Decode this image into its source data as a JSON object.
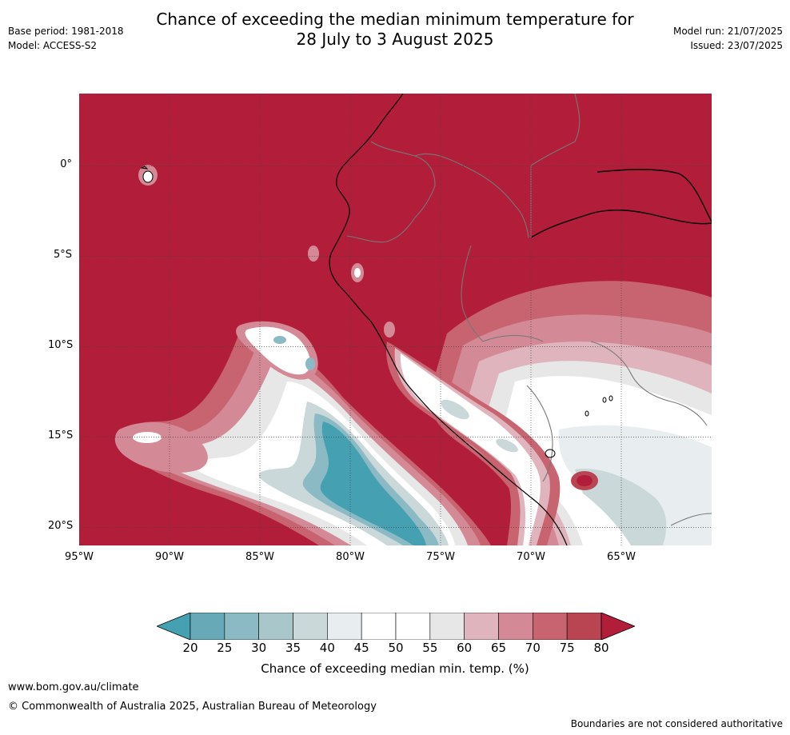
{
  "title_line1": "Chance of exceeding the median minimum temperature for",
  "title_line2": "28 July to 3 August 2025",
  "meta_left": [
    "Base period: 1981-2018",
    "Model: ACCESS-S2"
  ],
  "meta_right": [
    "Model run: 21/07/2025",
    "Issued: 23/07/2025"
  ],
  "map": {
    "lon_range": [
      -95,
      -60
    ],
    "lat_range": [
      -21,
      4
    ],
    "lat_ticks": [
      {
        "label": "0°",
        "lat": 0
      },
      {
        "label": "5°S",
        "lat": -5
      },
      {
        "label": "10°S",
        "lat": -10
      },
      {
        "label": "15°S",
        "lat": -15
      },
      {
        "label": "20°S",
        "lat": -20
      }
    ],
    "lon_ticks": [
      {
        "label": "95°W",
        "lon": -95
      },
      {
        "label": "90°W",
        "lon": -90
      },
      {
        "label": "85°W",
        "lon": -85
      },
      {
        "label": "80°W",
        "lon": -80
      },
      {
        "label": "75°W",
        "lon": -75
      },
      {
        "label": "70°W",
        "lon": -70
      },
      {
        "label": "65°W",
        "lon": -65
      }
    ],
    "background_color": "#b21e3a"
  },
  "colorbar": {
    "ticks": [
      "20",
      "25",
      "30",
      "35",
      "40",
      "45",
      "50",
      "55",
      "60",
      "65",
      "70",
      "75",
      "80"
    ],
    "colors": [
      "#67a9b6",
      "#8bbac4",
      "#a9c7cb",
      "#cad8da",
      "#e8eef0",
      "#ffffff",
      "#ffffff",
      "#e7e7e7",
      "#dfb4bc",
      "#d38a96",
      "#c76470",
      "#b94552"
    ],
    "under_color": "#45a0b2",
    "over_color": "#b21e3a",
    "label": "Chance of exceeding median min. temp. (%)"
  },
  "footer": {
    "url": "www.bom.gov.au/climate",
    "copyright": "© Commonwealth of Australia 2025, Australian Bureau of Meteorology",
    "note": "Boundaries are not considered authoritative"
  }
}
